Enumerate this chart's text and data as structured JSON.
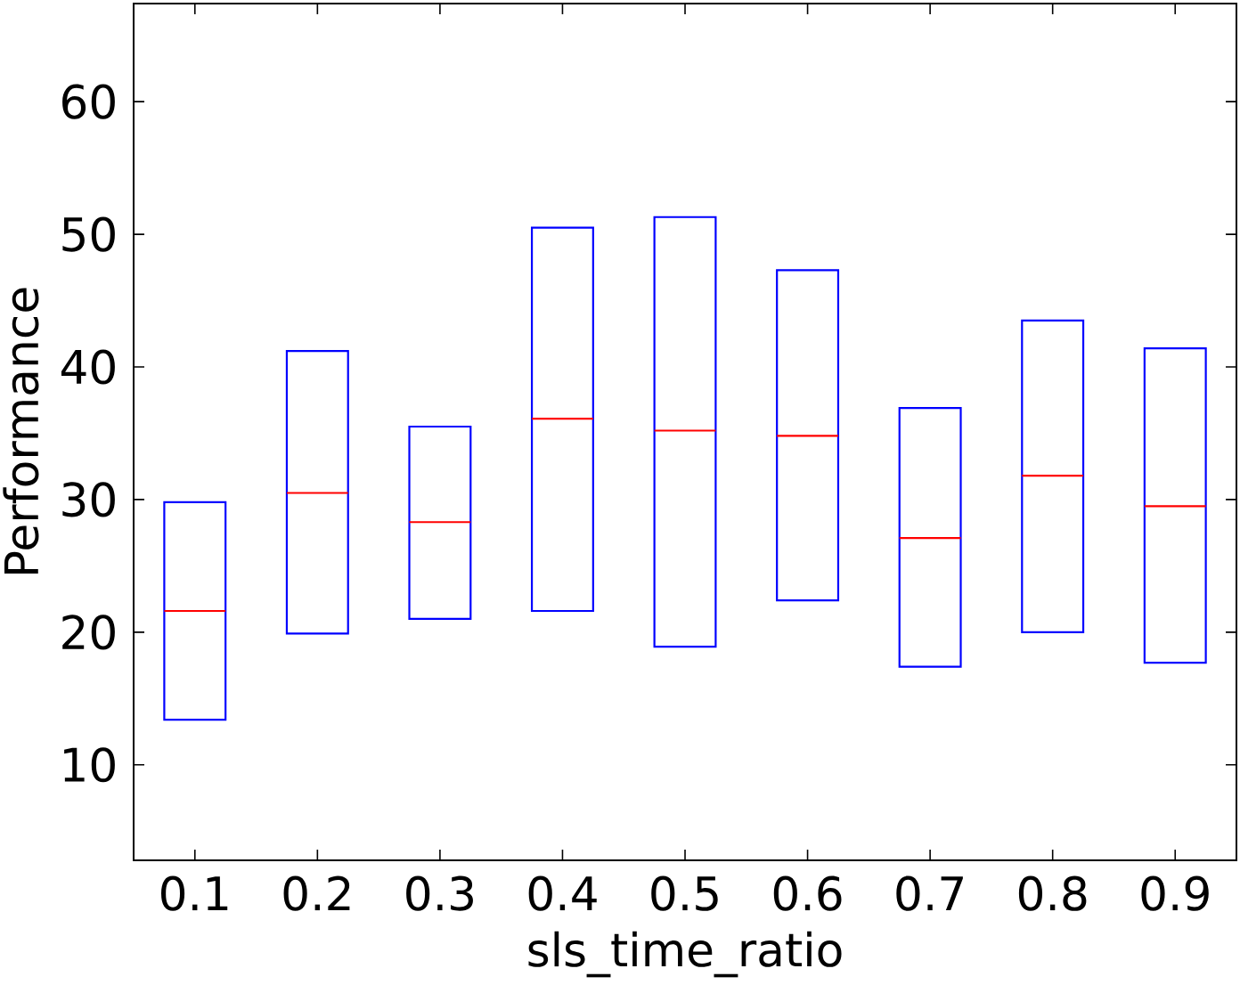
{
  "chart_data": {
    "type": "box",
    "xlabel": "sls_time_ratio",
    "ylabel": "Performance",
    "categories": [
      "0.1",
      "0.2",
      "0.3",
      "0.4",
      "0.5",
      "0.6",
      "0.7",
      "0.8",
      "0.9"
    ],
    "ylim": [
      2.8,
      67.4
    ],
    "yticks": [
      10,
      20,
      30,
      40,
      50,
      60
    ],
    "grid": false,
    "series": [
      {
        "color": "#0000ff",
        "boxes": [
          {
            "low": 13.4,
            "q1": 13.4,
            "median": 21.6,
            "q3": 29.8,
            "high": 29.8
          },
          {
            "low": 19.9,
            "q1": 19.9,
            "median": 30.5,
            "q3": 41.2,
            "high": 41.2
          },
          {
            "low": 21.0,
            "q1": 21.0,
            "median": 28.3,
            "q3": 35.5,
            "high": 35.5
          },
          {
            "low": 21.6,
            "q1": 21.6,
            "median": 36.1,
            "q3": 50.5,
            "high": 50.5
          },
          {
            "low": 18.9,
            "q1": 18.9,
            "median": 35.2,
            "q3": 51.3,
            "high": 51.3
          },
          {
            "low": 22.4,
            "q1": 22.4,
            "median": 34.8,
            "q3": 47.3,
            "high": 47.3
          },
          {
            "low": 17.4,
            "q1": 17.4,
            "median": 27.1,
            "q3": 36.9,
            "high": 36.9
          },
          {
            "low": 20.0,
            "q1": 20.0,
            "median": 31.8,
            "q3": 43.5,
            "high": 43.5
          },
          {
            "low": 17.7,
            "q1": 17.7,
            "median": 29.5,
            "q3": 41.4,
            "high": 41.4
          }
        ]
      }
    ]
  }
}
